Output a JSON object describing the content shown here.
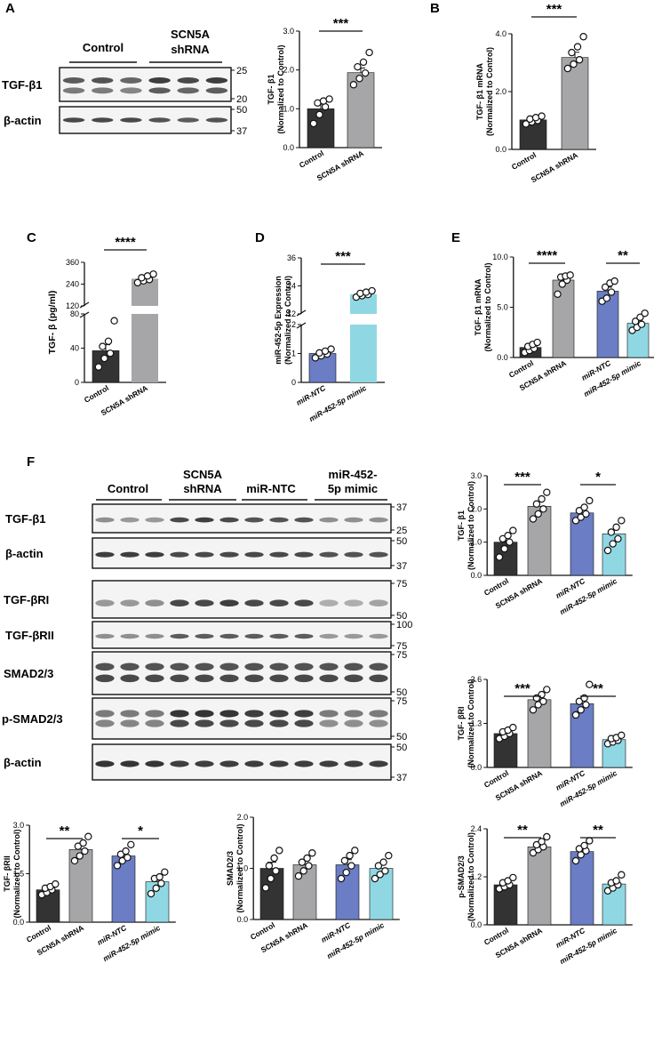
{
  "colors": {
    "control": "#333333",
    "scn5a": "#a6a6a8",
    "ntc": "#6b7dc4",
    "mimic": "#8fd8e3",
    "point_fill": "#ffffff",
    "band": "#2a2a2a"
  },
  "panels": {
    "A": {
      "letter": "A",
      "blot": {
        "groups": [
          "Control",
          "SCN5A\nshRNA"
        ],
        "rows": [
          {
            "label": "TGF-β1",
            "markers": [
              "25",
              "20"
            ]
          },
          {
            "label": "β-actin",
            "markers": [
              "50",
              "37"
            ]
          }
        ]
      },
      "chart": {
        "type": "bar",
        "ylabel": [
          "TGF- β1",
          "(Normalized to Control)"
        ],
        "categories": [
          "Control",
          "SCN5A shRNA"
        ],
        "yticks": [
          "0.0",
          "1.0",
          "2.0",
          "3.0"
        ],
        "ylim": [
          0,
          3
        ],
        "bars": [
          1.0,
          1.93
        ],
        "errors": [
          0.12,
          0.12
        ],
        "points": [
          [
            0.62,
            0.85,
            1.05,
            1.15,
            1.2,
            1.25
          ],
          [
            1.62,
            1.78,
            1.92,
            2.08,
            2.2,
            2.45
          ]
        ],
        "sig": [
          {
            "pair": [
              0,
              1
            ],
            "text": "***"
          }
        ]
      }
    },
    "B": {
      "letter": "B",
      "chart": {
        "type": "bar",
        "ylabel": [
          "TGF- β1 mRNA",
          "(Normalized to Control)"
        ],
        "categories": [
          "Control",
          "SCN5A shRNA"
        ],
        "yticks": [
          "0.0",
          "2.0",
          "4.0"
        ],
        "ylim": [
          0,
          4
        ],
        "bars": [
          1.02,
          3.18
        ],
        "errors": [
          0.06,
          0.18
        ],
        "points": [
          [
            0.88,
            0.95,
            1.0,
            1.05,
            1.1,
            1.15
          ],
          [
            2.8,
            2.95,
            3.1,
            3.35,
            3.55,
            3.9
          ]
        ],
        "sig": [
          {
            "pair": [
              0,
              1
            ],
            "text": "***"
          }
        ]
      }
    },
    "C": {
      "letter": "C",
      "chart": {
        "type": "bar",
        "ylabel": [
          "TGF- β (pg/ml)"
        ],
        "categories": [
          "Control",
          "SCN5A shRNA"
        ],
        "yticks_low": [
          "0",
          "40",
          "80"
        ],
        "yticks_high": [
          "120",
          "240",
          "360"
        ],
        "bars": [
          37,
          270
        ],
        "errors": [
          7,
          8
        ],
        "points": [
          [
            18,
            28,
            34,
            42,
            48,
            72
          ],
          [
            248,
            258,
            265,
            275,
            285,
            295
          ]
        ],
        "sig": [
          {
            "pair": [
              0,
              1
            ],
            "text": "****"
          }
        ]
      }
    },
    "D": {
      "letter": "D",
      "chart": {
        "type": "bar",
        "ylabel": [
          "miR-452-5p Expression",
          "(Normalized to Control)"
        ],
        "categories": [
          "miR-NTC",
          "miR-452-5p mimic"
        ],
        "yticks_low": [
          "0",
          "1",
          "2"
        ],
        "yticks_high": [
          "12",
          "24",
          "36"
        ],
        "bars": [
          1.0,
          20.5
        ],
        "errors": [
          0.05,
          0.5
        ],
        "points": [
          [
            0.85,
            0.92,
            0.98,
            1.02,
            1.08,
            1.15
          ],
          [
            19.2,
            19.8,
            20.3,
            20.8,
            21.3,
            21.9
          ]
        ],
        "sig": [
          {
            "pair": [
              0,
              1
            ],
            "text": "***"
          }
        ]
      }
    },
    "E": {
      "letter": "E",
      "chart": {
        "type": "bar",
        "ylabel": [
          "TGF- β1 mRNA",
          "(Normalized to Control)"
        ],
        "categories": [
          "Control",
          "SCN5A shRNA",
          "miR-NTC",
          "miR-452-5p mimic"
        ],
        "yticks": [
          "0.0",
          "5.0",
          "10.0"
        ],
        "ylim": [
          0,
          10
        ],
        "bars": [
          1.0,
          7.7,
          6.6,
          3.4
        ],
        "errors": [
          0.2,
          0.3,
          0.4,
          0.3
        ],
        "points": [
          [
            0.5,
            0.7,
            0.9,
            1.1,
            1.3,
            1.5
          ],
          [
            6.3,
            7.3,
            7.7,
            8.0,
            8.1,
            8.2
          ],
          [
            5.6,
            5.9,
            6.5,
            7.0,
            7.4,
            7.6
          ],
          [
            2.7,
            3.0,
            3.3,
            3.6,
            4.0,
            4.4
          ]
        ],
        "sig": [
          {
            "pair": [
              0,
              1
            ],
            "text": "****"
          },
          {
            "pair": [
              2,
              3
            ],
            "text": "**"
          }
        ]
      }
    },
    "F": {
      "letter": "F",
      "blot": {
        "groups": [
          "Control",
          "SCN5A\nshRNA",
          "miR-NTC",
          "miR-452-\n5p mimic"
        ],
        "rows": [
          {
            "label": "TGF-β1",
            "markers": [
              "37",
              "25"
            ]
          },
          {
            "label": "β-actin",
            "markers": [
              "50",
              "37"
            ]
          },
          {
            "label": "TGF-βRI",
            "markers": [
              "75",
              "50"
            ]
          },
          {
            "label": "TGF-βRII",
            "markers": [
              "100",
              "75"
            ]
          },
          {
            "label": "SMAD2/3",
            "markers": [
              "75",
              "50"
            ]
          },
          {
            "label": "p-SMAD2/3",
            "markers": [
              "75",
              "50"
            ]
          },
          {
            "label": "β-actin",
            "markers": [
              "50",
              "37"
            ]
          }
        ]
      },
      "charts": [
        {
          "type": "bar",
          "ylabel": [
            "TGF- β1",
            "(Normalized to Control)"
          ],
          "categories": [
            "Control",
            "SCN5A shRNA",
            "miR-NTC",
            "miR-452-5p mimic"
          ],
          "yticks": [
            "0.0",
            "1.0",
            "2.0",
            "3.0"
          ],
          "ylim": [
            0,
            3
          ],
          "bars": [
            1.0,
            2.08,
            1.88,
            1.25
          ],
          "errors": [
            0.12,
            0.15,
            0.08,
            0.12
          ],
          "points": [
            [
              0.55,
              0.8,
              1.0,
              1.1,
              1.2,
              1.35
            ],
            [
              1.7,
              1.85,
              2.0,
              2.15,
              2.3,
              2.5
            ],
            [
              1.65,
              1.75,
              1.85,
              1.95,
              2.05,
              2.25
            ],
            [
              0.75,
              0.95,
              1.1,
              1.3,
              1.45,
              1.65
            ]
          ],
          "sig": [
            {
              "pair": [
                0,
                1
              ],
              "text": "***"
            },
            {
              "pair": [
                2,
                3
              ],
              "text": "*"
            }
          ]
        },
        {
          "type": "bar",
          "ylabel": [
            "TGF- βRI",
            "(Normalized to Control)"
          ],
          "categories": [
            "Control",
            "SCN5A shRNA",
            "miR-NTC",
            "miR-452-5p mimic"
          ],
          "yticks": [
            "0.0",
            "1.3",
            "2.6"
          ],
          "ylim": [
            0,
            2.6
          ],
          "bars": [
            1.0,
            2.0,
            1.88,
            0.82
          ],
          "errors": [
            0.07,
            0.08,
            0.12,
            0.04
          ],
          "points": [
            [
              0.85,
              0.92,
              1.0,
              1.05,
              1.1,
              1.18
            ],
            [
              1.7,
              1.85,
              1.95,
              2.05,
              2.15,
              2.3
            ],
            [
              1.55,
              1.7,
              1.85,
              1.95,
              2.05,
              2.45
            ],
            [
              0.7,
              0.75,
              0.8,
              0.85,
              0.88,
              0.95
            ]
          ],
          "sig": [
            {
              "pair": [
                0,
                1
              ],
              "text": "***"
            },
            {
              "pair": [
                2,
                3
              ],
              "text": "**"
            }
          ]
        },
        {
          "type": "bar",
          "ylabel": [
            "TGF- βRII",
            "(Normalized to Control)"
          ],
          "categories": [
            "Control",
            "SCN5A shRNA",
            "miR-NTC",
            "miR-452-5p mimic"
          ],
          "yticks": [
            "0.0",
            "1.5",
            "3.0"
          ],
          "ylim": [
            0,
            3
          ],
          "bars": [
            1.0,
            2.25,
            2.05,
            1.25
          ],
          "errors": [
            0.06,
            0.12,
            0.1,
            0.1
          ],
          "points": [
            [
              0.85,
              0.92,
              1.0,
              1.05,
              1.1,
              1.18
            ],
            [
              1.9,
              2.05,
              2.2,
              2.35,
              2.45,
              2.65
            ],
            [
              1.75,
              1.9,
              2.0,
              2.1,
              2.2,
              2.4
            ],
            [
              0.88,
              1.05,
              1.2,
              1.35,
              1.4,
              1.55
            ]
          ],
          "sig": [
            {
              "pair": [
                0,
                1
              ],
              "text": "**"
            },
            {
              "pair": [
                2,
                3
              ],
              "text": "*"
            }
          ]
        },
        {
          "type": "bar",
          "ylabel": [
            "SMAD2/3",
            "(Normalized to Control)"
          ],
          "categories": [
            "Control",
            "SCN5A shRNA",
            "miR-NTC",
            "miR-452-5p mimic"
          ],
          "yticks": [
            "0.0",
            "1.0",
            "2.0"
          ],
          "ylim": [
            0,
            2
          ],
          "bars": [
            1.0,
            1.07,
            1.07,
            1.0
          ],
          "errors": [
            0.12,
            0.08,
            0.1,
            0.08
          ],
          "points": [
            [
              0.62,
              0.8,
              0.95,
              1.05,
              1.2,
              1.35
            ],
            [
              0.85,
              0.95,
              1.05,
              1.12,
              1.2,
              1.3
            ],
            [
              0.8,
              0.92,
              1.05,
              1.15,
              1.25,
              1.35
            ],
            [
              0.8,
              0.88,
              0.95,
              1.05,
              1.12,
              1.25
            ]
          ],
          "sig": []
        },
        {
          "type": "bar",
          "ylabel": [
            "p-SMAD2/3",
            "(Normalized to Control)"
          ],
          "categories": [
            "Control",
            "SCN5A shRNA",
            "miR-NTC",
            "miR-452-5p mimic"
          ],
          "yticks": [
            "0.0",
            "1.2",
            "2.4"
          ],
          "ylim": [
            0,
            2.4
          ],
          "bars": [
            1.0,
            1.95,
            1.83,
            1.02
          ],
          "errors": [
            0.05,
            0.06,
            0.07,
            0.06
          ],
          "points": [
            [
              0.9,
              0.95,
              1.0,
              1.05,
              1.1,
              1.18
            ],
            [
              1.8,
              1.88,
              1.95,
              2.0,
              2.08,
              2.2
            ],
            [
              1.6,
              1.75,
              1.85,
              1.9,
              1.98,
              2.1
            ],
            [
              0.85,
              0.92,
              1.0,
              1.05,
              1.1,
              1.25
            ]
          ],
          "sig": [
            {
              "pair": [
                0,
                1
              ],
              "text": "**"
            },
            {
              "pair": [
                2,
                3
              ],
              "text": "**"
            }
          ]
        }
      ]
    }
  }
}
